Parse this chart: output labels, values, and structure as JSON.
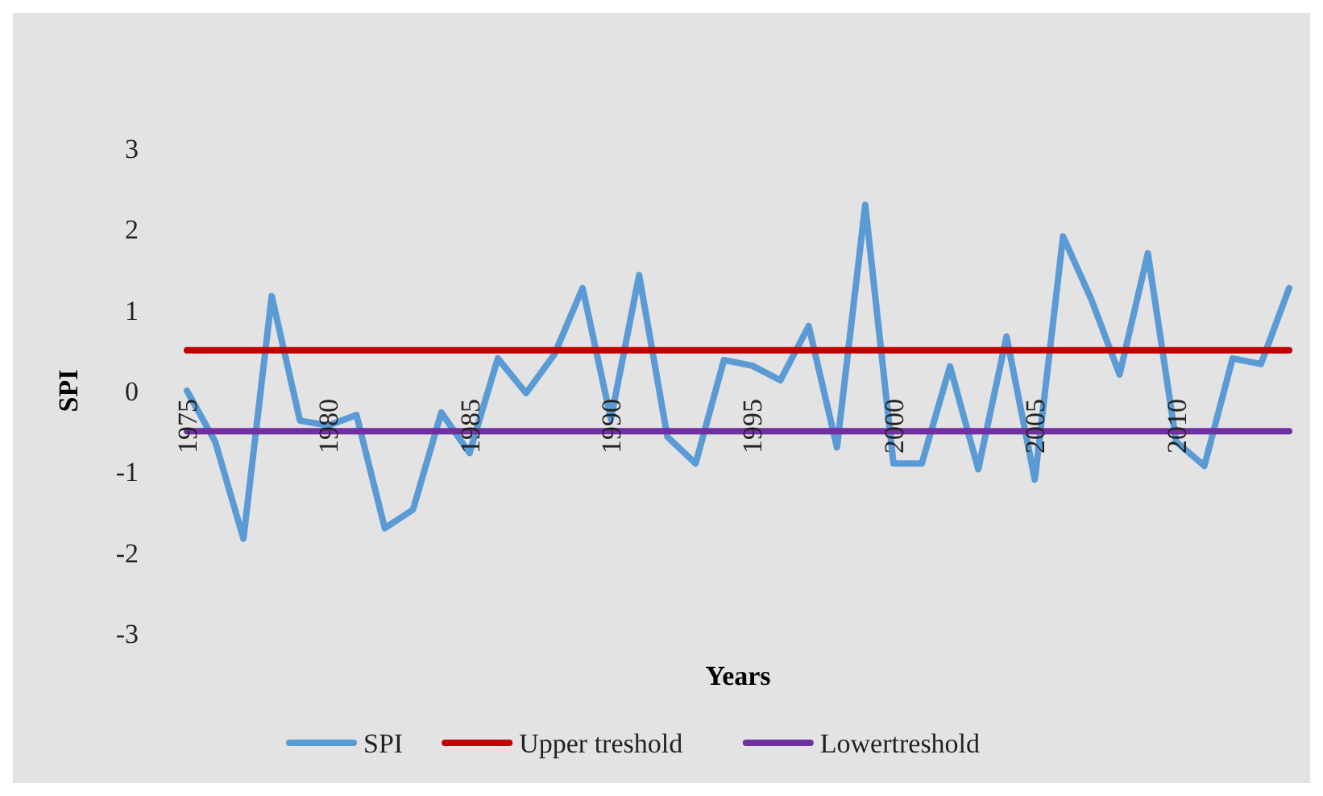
{
  "chart_data": {
    "type": "line",
    "xlabel": "Years",
    "ylabel": "SPI",
    "categories": [
      "1975",
      null,
      null,
      null,
      null,
      "1980",
      null,
      null,
      null,
      null,
      "1985",
      null,
      null,
      null,
      null,
      "1990",
      null,
      null,
      null,
      null,
      "1995",
      null,
      null,
      null,
      null,
      "2000",
      null,
      null,
      null,
      null,
      "2005",
      null,
      null,
      null,
      null,
      "2010",
      null,
      null,
      null,
      null
    ],
    "series": [
      {
        "name": "SPI",
        "color": "#5b9bd5",
        "values": [
          0.0,
          -0.63,
          -1.83,
          1.17,
          -0.37,
          -0.43,
          -0.3,
          -1.7,
          -1.47,
          -0.27,
          -0.77,
          0.4,
          -0.03,
          0.45,
          1.27,
          -0.35,
          1.43,
          -0.57,
          -0.9,
          0.38,
          0.31,
          0.13,
          0.8,
          -0.7,
          2.3,
          -0.9,
          -0.9,
          0.3,
          -0.97,
          0.67,
          -1.1,
          1.91,
          1.13,
          0.2,
          1.7,
          -0.63,
          -0.93,
          0.4,
          0.33,
          1.27
        ]
      },
      {
        "name": "Upper treshold",
        "color": "#c00000",
        "values": [
          0.5,
          0.5,
          0.5,
          0.5,
          0.5,
          0.5,
          0.5,
          0.5,
          0.5,
          0.5,
          0.5,
          0.5,
          0.5,
          0.5,
          0.5,
          0.5,
          0.5,
          0.5,
          0.5,
          0.5,
          0.5,
          0.5,
          0.5,
          0.5,
          0.5,
          0.5,
          0.5,
          0.5,
          0.5,
          0.5,
          0.5,
          0.5,
          0.5,
          0.5,
          0.5,
          0.5,
          0.5,
          0.5,
          0.5,
          0.5
        ]
      },
      {
        "name": "Lowertreshold",
        "color": "#7030a0",
        "values": [
          -0.5,
          -0.5,
          -0.5,
          -0.5,
          -0.5,
          -0.5,
          -0.5,
          -0.5,
          -0.5,
          -0.5,
          -0.5,
          -0.5,
          -0.5,
          -0.5,
          -0.5,
          -0.5,
          -0.5,
          -0.5,
          -0.5,
          -0.5,
          -0.5,
          -0.5,
          -0.5,
          -0.5,
          -0.5,
          -0.5,
          -0.5,
          -0.5,
          -0.5,
          -0.5,
          -0.5,
          -0.5,
          -0.5,
          -0.5,
          -0.5,
          -0.5,
          -0.5,
          -0.5,
          -0.5,
          -0.5
        ]
      }
    ],
    "ylim": [
      -3,
      3
    ],
    "yticks": [
      -3,
      -2,
      -1,
      0,
      1,
      2,
      3
    ],
    "grid": false,
    "legend": "bottom",
    "marker": "none",
    "line_style": "solid"
  }
}
